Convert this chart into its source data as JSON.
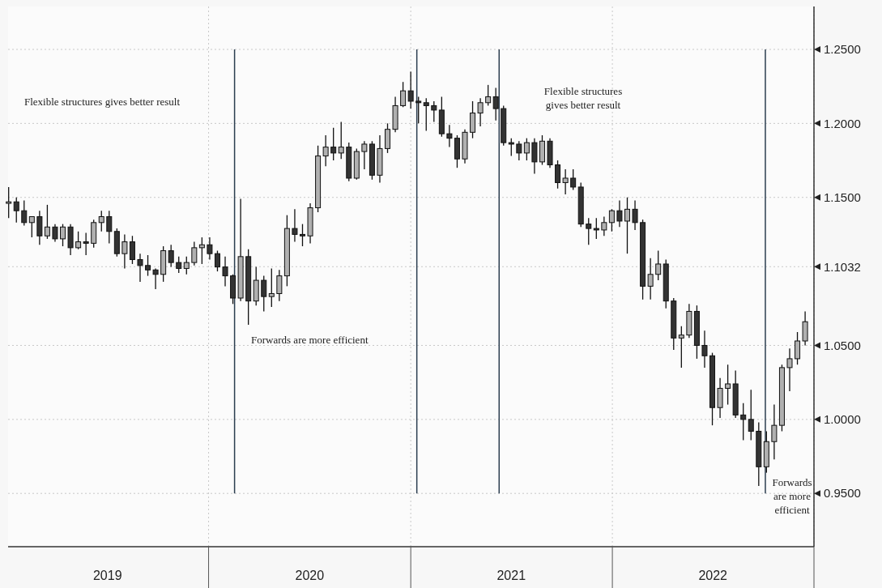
{
  "chart_data": {
    "type": "candlestick",
    "x": [
      "2019-01-04",
      "2019-01-18",
      "2019-02-01",
      "2019-02-15",
      "2019-03-01",
      "2019-03-15",
      "2019-03-29",
      "2019-04-12",
      "2019-04-26",
      "2019-05-10",
      "2019-05-24",
      "2019-06-07",
      "2019-06-21",
      "2019-07-05",
      "2019-07-19",
      "2019-08-02",
      "2019-08-16",
      "2019-08-30",
      "2019-09-13",
      "2019-09-27",
      "2019-10-11",
      "2019-10-25",
      "2019-11-08",
      "2019-11-22",
      "2019-12-06",
      "2019-12-20",
      "2020-01-03",
      "2020-01-17",
      "2020-01-31",
      "2020-02-14",
      "2020-02-28",
      "2020-03-13",
      "2020-03-27",
      "2020-04-10",
      "2020-04-24",
      "2020-05-08",
      "2020-05-22",
      "2020-06-05",
      "2020-06-19",
      "2020-07-03",
      "2020-07-17",
      "2020-07-31",
      "2020-08-14",
      "2020-08-28",
      "2020-09-11",
      "2020-09-25",
      "2020-10-09",
      "2020-10-23",
      "2020-11-06",
      "2020-11-20",
      "2020-12-04",
      "2020-12-18",
      "2021-01-01",
      "2021-01-15",
      "2021-01-29",
      "2021-02-12",
      "2021-02-26",
      "2021-03-12",
      "2021-03-26",
      "2021-04-09",
      "2021-04-23",
      "2021-05-07",
      "2021-05-21",
      "2021-06-04",
      "2021-06-18",
      "2021-07-02",
      "2021-07-16",
      "2021-07-30",
      "2021-08-13",
      "2021-08-27",
      "2021-09-10",
      "2021-09-24",
      "2021-10-08",
      "2021-10-22",
      "2021-11-05",
      "2021-11-19",
      "2021-12-03",
      "2021-12-17",
      "2021-12-31",
      "2022-01-14",
      "2022-01-28",
      "2022-02-11",
      "2022-02-25",
      "2022-03-11",
      "2022-03-25",
      "2022-04-08",
      "2022-04-22",
      "2022-05-06",
      "2022-05-20",
      "2022-06-03",
      "2022-06-17",
      "2022-07-01",
      "2022-07-15",
      "2022-07-29",
      "2022-08-12",
      "2022-08-26",
      "2022-09-09",
      "2022-09-23",
      "2022-10-07",
      "2022-10-21",
      "2022-11-04",
      "2022-11-18",
      "2022-12-02",
      "2022-12-16"
    ],
    "ohlc": [
      [
        1.146,
        1.157,
        1.136,
        1.147
      ],
      [
        1.147,
        1.15,
        1.133,
        1.141
      ],
      [
        1.141,
        1.148,
        1.131,
        1.133
      ],
      [
        1.133,
        1.137,
        1.123,
        1.137
      ],
      [
        1.137,
        1.141,
        1.118,
        1.124
      ],
      [
        1.124,
        1.145,
        1.122,
        1.13
      ],
      [
        1.13,
        1.132,
        1.12,
        1.122
      ],
      [
        1.122,
        1.132,
        1.117,
        1.13
      ],
      [
        1.13,
        1.132,
        1.111,
        1.116
      ],
      [
        1.116,
        1.127,
        1.115,
        1.12
      ],
      [
        1.12,
        1.126,
        1.111,
        1.119
      ],
      [
        1.119,
        1.135,
        1.116,
        1.133
      ],
      [
        1.133,
        1.141,
        1.127,
        1.137
      ],
      [
        1.137,
        1.141,
        1.119,
        1.127
      ],
      [
        1.127,
        1.129,
        1.11,
        1.112
      ],
      [
        1.112,
        1.125,
        1.102,
        1.12
      ],
      [
        1.12,
        1.124,
        1.105,
        1.108
      ],
      [
        1.108,
        1.112,
        1.093,
        1.104
      ],
      [
        1.104,
        1.111,
        1.097,
        1.101
      ],
      [
        1.101,
        1.102,
        1.088,
        1.098
      ],
      [
        1.098,
        1.117,
        1.093,
        1.114
      ],
      [
        1.114,
        1.118,
        1.103,
        1.106
      ],
      [
        1.106,
        1.11,
        1.099,
        1.102
      ],
      [
        1.102,
        1.11,
        1.098,
        1.106
      ],
      [
        1.106,
        1.12,
        1.104,
        1.116
      ],
      [
        1.116,
        1.123,
        1.105,
        1.118
      ],
      [
        1.118,
        1.123,
        1.108,
        1.112
      ],
      [
        1.112,
        1.114,
        1.1,
        1.103
      ],
      [
        1.103,
        1.11,
        1.09,
        1.097
      ],
      [
        1.097,
        1.098,
        1.078,
        1.082
      ],
      [
        1.082,
        1.149,
        1.08,
        1.11
      ],
      [
        1.11,
        1.115,
        1.064,
        1.08
      ],
      [
        1.08,
        1.103,
        1.077,
        1.094
      ],
      [
        1.094,
        1.097,
        1.073,
        1.083
      ],
      [
        1.083,
        1.102,
        1.076,
        1.085
      ],
      [
        1.085,
        1.101,
        1.08,
        1.097
      ],
      [
        1.097,
        1.138,
        1.09,
        1.129
      ],
      [
        1.129,
        1.142,
        1.12,
        1.125
      ],
      [
        1.125,
        1.132,
        1.117,
        1.124
      ],
      [
        1.124,
        1.146,
        1.119,
        1.143
      ],
      [
        1.143,
        1.185,
        1.14,
        1.178
      ],
      [
        1.178,
        1.192,
        1.171,
        1.184
      ],
      [
        1.184,
        1.197,
        1.175,
        1.18
      ],
      [
        1.18,
        1.201,
        1.176,
        1.184
      ],
      [
        1.184,
        1.187,
        1.161,
        1.163
      ],
      [
        1.163,
        1.183,
        1.162,
        1.181
      ],
      [
        1.181,
        1.188,
        1.169,
        1.186
      ],
      [
        1.186,
        1.188,
        1.162,
        1.165
      ],
      [
        1.165,
        1.192,
        1.16,
        1.183
      ],
      [
        1.183,
        1.2,
        1.18,
        1.196
      ],
      [
        1.196,
        1.218,
        1.194,
        1.212
      ],
      [
        1.212,
        1.228,
        1.211,
        1.222
      ],
      [
        1.222,
        1.235,
        1.21,
        1.215
      ],
      [
        1.215,
        1.218,
        1.2,
        1.214
      ],
      [
        1.214,
        1.217,
        1.195,
        1.212
      ],
      [
        1.212,
        1.215,
        1.201,
        1.209
      ],
      [
        1.209,
        1.218,
        1.191,
        1.193
      ],
      [
        1.193,
        1.199,
        1.184,
        1.19
      ],
      [
        1.19,
        1.192,
        1.17,
        1.176
      ],
      [
        1.176,
        1.196,
        1.173,
        1.194
      ],
      [
        1.194,
        1.215,
        1.19,
        1.207
      ],
      [
        1.207,
        1.217,
        1.198,
        1.214
      ],
      [
        1.214,
        1.226,
        1.212,
        1.218
      ],
      [
        1.218,
        1.224,
        1.202,
        1.21
      ],
      [
        1.21,
        1.212,
        1.185,
        1.187
      ],
      [
        1.187,
        1.19,
        1.178,
        1.186
      ],
      [
        1.186,
        1.188,
        1.175,
        1.18
      ],
      [
        1.18,
        1.19,
        1.175,
        1.187
      ],
      [
        1.187,
        1.19,
        1.166,
        1.174
      ],
      [
        1.174,
        1.192,
        1.172,
        1.188
      ],
      [
        1.188,
        1.19,
        1.17,
        1.172
      ],
      [
        1.172,
        1.175,
        1.156,
        1.16
      ],
      [
        1.16,
        1.169,
        1.152,
        1.163
      ],
      [
        1.163,
        1.169,
        1.155,
        1.157
      ],
      [
        1.157,
        1.16,
        1.13,
        1.132
      ],
      [
        1.132,
        1.136,
        1.118,
        1.129
      ],
      [
        1.129,
        1.136,
        1.122,
        1.128
      ],
      [
        1.128,
        1.137,
        1.124,
        1.133
      ],
      [
        1.133,
        1.142,
        1.127,
        1.141
      ],
      [
        1.141,
        1.148,
        1.13,
        1.134
      ],
      [
        1.134,
        1.15,
        1.112,
        1.142
      ],
      [
        1.142,
        1.148,
        1.128,
        1.133
      ],
      [
        1.133,
        1.135,
        1.081,
        1.09
      ],
      [
        1.09,
        1.109,
        1.081,
        1.098
      ],
      [
        1.098,
        1.114,
        1.094,
        1.105
      ],
      [
        1.105,
        1.108,
        1.075,
        1.08
      ],
      [
        1.08,
        1.082,
        1.047,
        1.055
      ],
      [
        1.055,
        1.063,
        1.035,
        1.057
      ],
      [
        1.057,
        1.078,
        1.055,
        1.073
      ],
      [
        1.073,
        1.077,
        1.041,
        1.05
      ],
      [
        1.05,
        1.06,
        1.035,
        1.043
      ],
      [
        1.043,
        1.045,
        0.996,
        1.008
      ],
      [
        1.008,
        1.028,
        1.001,
        1.021
      ],
      [
        1.021,
        1.037,
        1.01,
        1.024
      ],
      [
        1.024,
        1.033,
        1.001,
        1.003
      ],
      [
        1.003,
        1.011,
        0.986,
        1.0
      ],
      [
        1.0,
        1.02,
        0.986,
        0.992
      ],
      [
        0.992,
        0.998,
        0.955,
        0.968
      ],
      [
        0.968,
        0.992,
        0.964,
        0.985
      ],
      [
        0.985,
        1.01,
        0.973,
        0.996
      ],
      [
        0.996,
        1.037,
        0.992,
        1.035
      ],
      [
        1.035,
        1.048,
        1.019,
        1.041
      ],
      [
        1.041,
        1.059,
        1.037,
        1.053
      ],
      [
        1.053,
        1.073,
        1.05,
        1.066
      ]
    ],
    "xlim": [
      "2019-01-03",
      "2023-01-01"
    ],
    "xticks": [
      {
        "value": "2019-07-02",
        "label": "2019"
      },
      {
        "value": "2020-01-01",
        "label": null
      },
      {
        "value": "2020-07-02",
        "label": "2020"
      },
      {
        "value": "2021-01-01",
        "label": null
      },
      {
        "value": "2021-07-02",
        "label": "2021"
      },
      {
        "value": "2022-01-01",
        "label": null
      },
      {
        "value": "2022-07-02",
        "label": "2022"
      },
      {
        "value": "2023-01-01",
        "label": null
      }
    ],
    "ylim": [
      0.914,
      1.279
    ],
    "yticks": [
      {
        "value": 0.95,
        "label": "0.9500"
      },
      {
        "value": 1.0,
        "label": "1.0000"
      },
      {
        "value": 1.05,
        "label": "1.0500"
      },
      {
        "value": 1.1032,
        "label": "1.1032"
      },
      {
        "value": 1.15,
        "label": "1.1500"
      },
      {
        "value": 1.2,
        "label": "1.2000"
      },
      {
        "value": 1.25,
        "label": "1.2500"
      }
    ],
    "grid": true,
    "ref_lines": [
      {
        "axis": "x",
        "value": "2020-02-17",
        "color": "#2c3e50"
      },
      {
        "axis": "x",
        "value": "2021-01-12",
        "color": "#2c3e50"
      },
      {
        "axis": "x",
        "value": "2021-06-10",
        "color": "#2c3e50"
      },
      {
        "axis": "x",
        "value": "2022-10-05",
        "color": "#2c3e50"
      }
    ],
    "annotations": [
      "Flexible structures gives better result",
      "Forwards are more efficient",
      "Flexible structures\ngives better result",
      "Forwards\nare more\nefficient"
    ]
  }
}
